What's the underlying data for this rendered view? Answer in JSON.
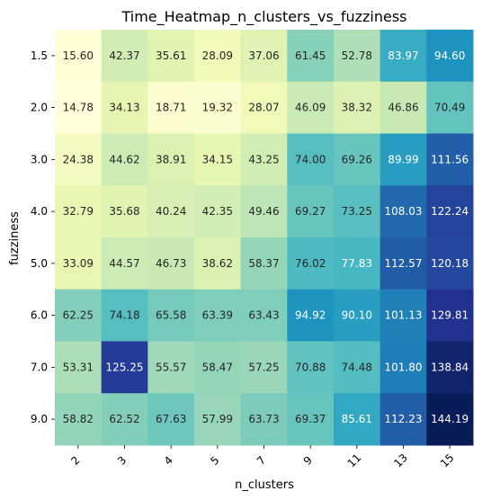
{
  "chart_data": {
    "type": "heatmap",
    "title": "Time_Heatmap_n_clusters_vs_fuzziness",
    "xlabel": "n_clusters",
    "ylabel": "fuzziness",
    "x_categories": [
      "2",
      "3",
      "4",
      "5",
      "7",
      "9",
      "11",
      "13",
      "15"
    ],
    "y_categories": [
      "1.5",
      "2.0",
      "3.0",
      "4.0",
      "5.0",
      "6.0",
      "7.0",
      "9.0"
    ],
    "values": [
      [
        15.6,
        42.37,
        35.61,
        28.09,
        37.06,
        61.45,
        52.78,
        83.97,
        94.6
      ],
      [
        14.78,
        34.13,
        18.71,
        19.32,
        28.07,
        46.09,
        38.32,
        46.86,
        70.49
      ],
      [
        24.38,
        44.62,
        38.91,
        34.15,
        43.25,
        74.0,
        69.26,
        89.99,
        111.56
      ],
      [
        32.79,
        35.68,
        40.24,
        42.35,
        49.46,
        69.27,
        73.25,
        108.03,
        122.24
      ],
      [
        33.09,
        44.57,
        46.73,
        38.62,
        58.37,
        76.02,
        77.83,
        112.57,
        120.18
      ],
      [
        62.25,
        74.18,
        65.58,
        63.39,
        63.43,
        94.92,
        90.1,
        101.13,
        129.81
      ],
      [
        53.31,
        125.25,
        55.57,
        58.47,
        57.25,
        70.88,
        74.48,
        101.8,
        138.84
      ],
      [
        58.82,
        62.52,
        67.63,
        57.99,
        63.73,
        69.37,
        85.61,
        112.23,
        144.19
      ]
    ],
    "value_format": "2 decimals",
    "colormap": "YlGnBu",
    "colormap_stops": [
      "#ffffd9",
      "#edf8b1",
      "#c7e9b4",
      "#7fcdbb",
      "#41b6c4",
      "#1d91c0",
      "#225ea8",
      "#253494",
      "#081d58"
    ],
    "x_tick_rotation": -45,
    "grid": false,
    "legend": "none"
  }
}
